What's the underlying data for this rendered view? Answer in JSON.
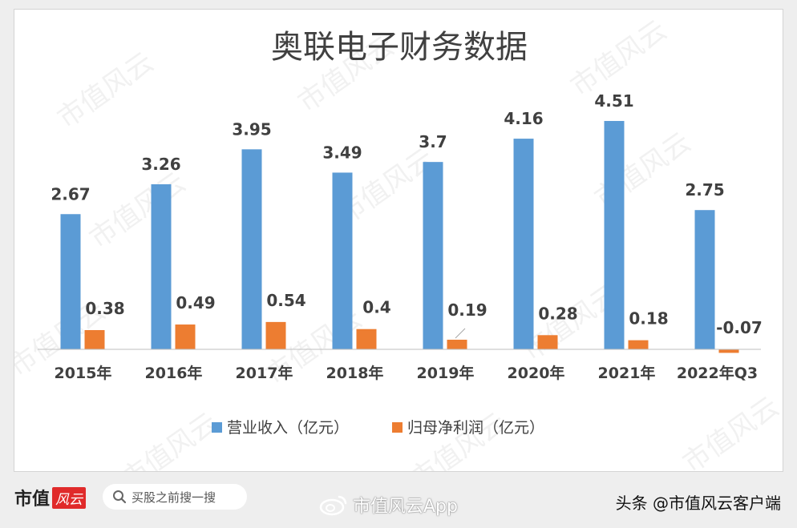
{
  "chart_data": {
    "type": "bar",
    "title": "奥联电子财务数据",
    "categories": [
      "2015年",
      "2016年",
      "2017年",
      "2018年",
      "2019年",
      "2020年",
      "2021年",
      "2022年Q3"
    ],
    "series": [
      {
        "name": "营业收入（亿元）",
        "values": [
          2.67,
          3.26,
          3.95,
          3.49,
          3.7,
          4.16,
          4.51,
          2.75
        ],
        "labels": [
          "2.67",
          "3.26",
          "3.95",
          "3.49",
          "3.7",
          "4.16",
          "4.51",
          "2.75"
        ],
        "color": "#5b9bd5"
      },
      {
        "name": "归母净利润（亿元）",
        "values": [
          0.38,
          0.49,
          0.54,
          0.4,
          0.19,
          0.28,
          0.18,
          -0.07
        ],
        "labels": [
          "0.38",
          "0.49",
          "0.54",
          "0.4",
          "0.19",
          "0.28",
          "0.18",
          "-0.07"
        ],
        "color": "#ed7d31"
      }
    ],
    "ylim": [
      -0.1,
      5.0
    ],
    "grid": false,
    "legend": "bottom"
  },
  "watermark": "市值风云",
  "footer": {
    "brand_main": "市值",
    "brand_badge": "风云",
    "search_placeholder": "买股之前搜一搜",
    "app_name": "市值风云App",
    "credit": "头条 @市值风云客户端"
  },
  "icons": {
    "search": "search-icon",
    "weibo": "weibo-icon"
  }
}
